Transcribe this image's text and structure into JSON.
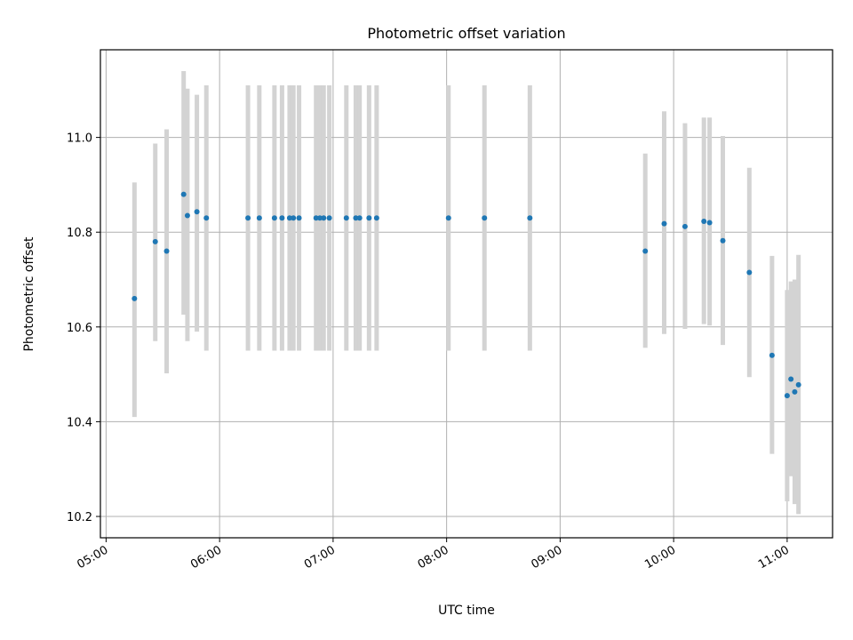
{
  "chart_data": {
    "type": "scatter",
    "title": "Photometric offset variation",
    "xlabel": "UTC time",
    "ylabel": "Photometric offset",
    "x_ticks": [
      "05:00",
      "06:00",
      "07:00",
      "08:00",
      "09:00",
      "10:00",
      "11:00"
    ],
    "y_ticks": [
      "10.2",
      "10.4",
      "10.6",
      "10.8",
      "11.0"
    ],
    "xlim": [
      "04:57",
      "11:24"
    ],
    "ylim": [
      10.155,
      11.185
    ],
    "grid": true,
    "colors": {
      "point": "#1f77b4",
      "errorbar": "#d3d3d3",
      "grid": "#b0b0b0"
    },
    "points": [
      {
        "x": "05:15",
        "y": 10.66,
        "y_err_low": 10.41,
        "y_err_high": 10.905
      },
      {
        "x": "05:26",
        "y": 10.78,
        "y_err_low": 10.57,
        "y_err_high": 10.987
      },
      {
        "x": "05:32",
        "y": 10.76,
        "y_err_low": 10.502,
        "y_err_high": 11.017
      },
      {
        "x": "05:41",
        "y": 10.88,
        "y_err_low": 10.626,
        "y_err_high": 11.14
      },
      {
        "x": "05:43",
        "y": 10.835,
        "y_err_low": 10.57,
        "y_err_high": 11.103
      },
      {
        "x": "05:48",
        "y": 10.843,
        "y_err_low": 10.59,
        "y_err_high": 11.09
      },
      {
        "x": "05:53",
        "y": 10.83,
        "y_err_low": 10.55,
        "y_err_high": 11.11
      },
      {
        "x": "06:15",
        "y": 10.83,
        "y_err_low": 10.55,
        "y_err_high": 11.11
      },
      {
        "x": "06:21",
        "y": 10.83,
        "y_err_low": 10.55,
        "y_err_high": 11.11
      },
      {
        "x": "06:29",
        "y": 10.83,
        "y_err_low": 10.55,
        "y_err_high": 11.11
      },
      {
        "x": "06:33",
        "y": 10.83,
        "y_err_low": 10.55,
        "y_err_high": 11.11
      },
      {
        "x": "06:37",
        "y": 10.83,
        "y_err_low": 10.55,
        "y_err_high": 11.11
      },
      {
        "x": "06:39",
        "y": 10.83,
        "y_err_low": 10.55,
        "y_err_high": 11.11
      },
      {
        "x": "06:42",
        "y": 10.83,
        "y_err_low": 10.55,
        "y_err_high": 11.11
      },
      {
        "x": "06:51",
        "y": 10.83,
        "y_err_low": 10.55,
        "y_err_high": 11.11
      },
      {
        "x": "06:53",
        "y": 10.83,
        "y_err_low": 10.55,
        "y_err_high": 11.11
      },
      {
        "x": "06:55",
        "y": 10.83,
        "y_err_low": 10.55,
        "y_err_high": 11.11
      },
      {
        "x": "06:58",
        "y": 10.83,
        "y_err_low": 10.55,
        "y_err_high": 11.11
      },
      {
        "x": "07:07",
        "y": 10.83,
        "y_err_low": 10.55,
        "y_err_high": 11.11
      },
      {
        "x": "07:12",
        "y": 10.83,
        "y_err_low": 10.55,
        "y_err_high": 11.11
      },
      {
        "x": "07:14",
        "y": 10.83,
        "y_err_low": 10.55,
        "y_err_high": 11.11
      },
      {
        "x": "07:19",
        "y": 10.83,
        "y_err_low": 10.55,
        "y_err_high": 11.11
      },
      {
        "x": "07:23",
        "y": 10.83,
        "y_err_low": 10.55,
        "y_err_high": 11.11
      },
      {
        "x": "08:01",
        "y": 10.83,
        "y_err_low": 10.55,
        "y_err_high": 11.11
      },
      {
        "x": "08:20",
        "y": 10.83,
        "y_err_low": 10.55,
        "y_err_high": 11.11
      },
      {
        "x": "08:44",
        "y": 10.83,
        "y_err_low": 10.55,
        "y_err_high": 11.11
      },
      {
        "x": "09:45",
        "y": 10.76,
        "y_err_low": 10.556,
        "y_err_high": 10.966
      },
      {
        "x": "09:55",
        "y": 10.818,
        "y_err_low": 10.585,
        "y_err_high": 11.055
      },
      {
        "x": "10:06",
        "y": 10.812,
        "y_err_low": 10.596,
        "y_err_high": 11.03
      },
      {
        "x": "10:16",
        "y": 10.823,
        "y_err_low": 10.606,
        "y_err_high": 11.042
      },
      {
        "x": "10:19",
        "y": 10.82,
        "y_err_low": 10.603,
        "y_err_high": 11.042
      },
      {
        "x": "10:26",
        "y": 10.782,
        "y_err_low": 10.562,
        "y_err_high": 11.003
      },
      {
        "x": "10:40",
        "y": 10.715,
        "y_err_low": 10.494,
        "y_err_high": 10.936
      },
      {
        "x": "10:52",
        "y": 10.54,
        "y_err_low": 10.332,
        "y_err_high": 10.75
      },
      {
        "x": "11:00",
        "y": 10.455,
        "y_err_low": 10.232,
        "y_err_high": 10.678
      },
      {
        "x": "11:02",
        "y": 10.49,
        "y_err_low": 10.285,
        "y_err_high": 10.696
      },
      {
        "x": "11:04",
        "y": 10.463,
        "y_err_low": 10.226,
        "y_err_high": 10.7
      },
      {
        "x": "11:06",
        "y": 10.478,
        "y_err_low": 10.205,
        "y_err_high": 10.752
      }
    ]
  }
}
